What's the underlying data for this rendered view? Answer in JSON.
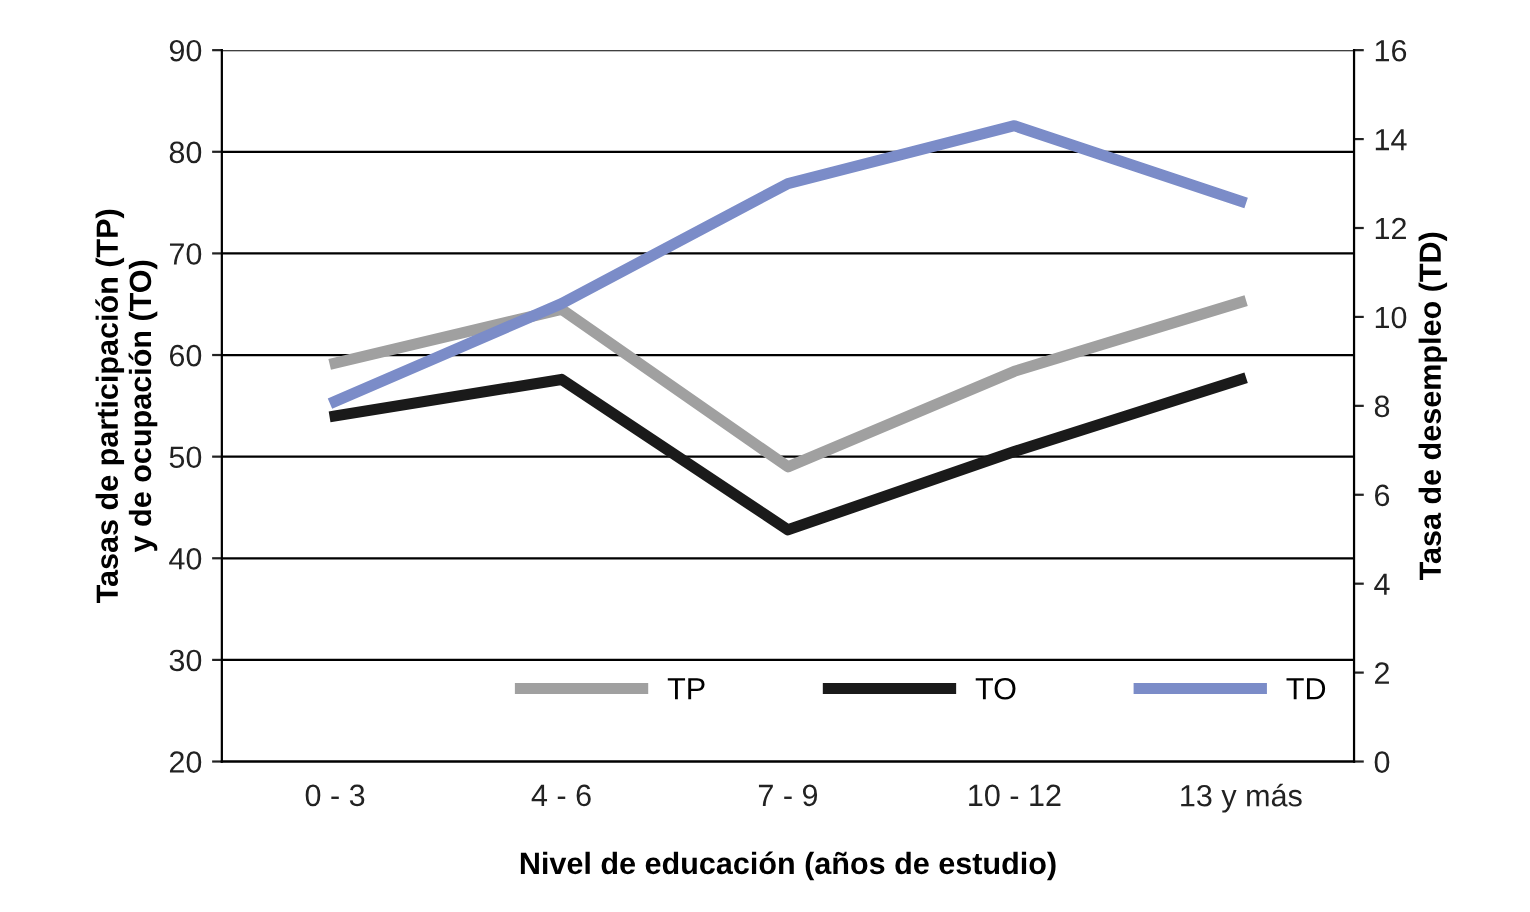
{
  "chart_data": {
    "type": "line",
    "xlabel": "Nivel de educación (años de estudio)",
    "ylabel": "Tasas de participación (TP)\ny de ocupación (TO)",
    "y2label": "Tasa de desempleo (TD)",
    "categories": [
      "0 - 3",
      "4 - 6",
      "7 - 9",
      "10 - 12",
      "13 y más"
    ],
    "series": [
      {
        "name": "TP",
        "color": "#a0a0a0",
        "values": [
          59.2,
          64.5,
          49,
          58.4,
          65.2
        ]
      },
      {
        "name": "TO",
        "color": "#1a1a1a",
        "values": [
          54,
          57.6,
          42.8,
          50.5,
          57.6
        ]
      },
      {
        "name": "TD",
        "color": "#7b8cc8",
        "axis": "y2",
        "values": [
          8.1,
          10.3,
          13.0,
          14.3,
          12.6
        ]
      }
    ],
    "ylim": [
      20,
      90
    ],
    "yticks": [
      20,
      30,
      40,
      50,
      60,
      70,
      80,
      90
    ],
    "y2lim": [
      0,
      16
    ],
    "y2ticks": [
      0,
      2,
      4,
      6,
      8,
      10,
      12,
      14,
      16
    ],
    "grid": "y",
    "legend": "bottom right",
    "marker": "none",
    "line_style": "solid"
  }
}
